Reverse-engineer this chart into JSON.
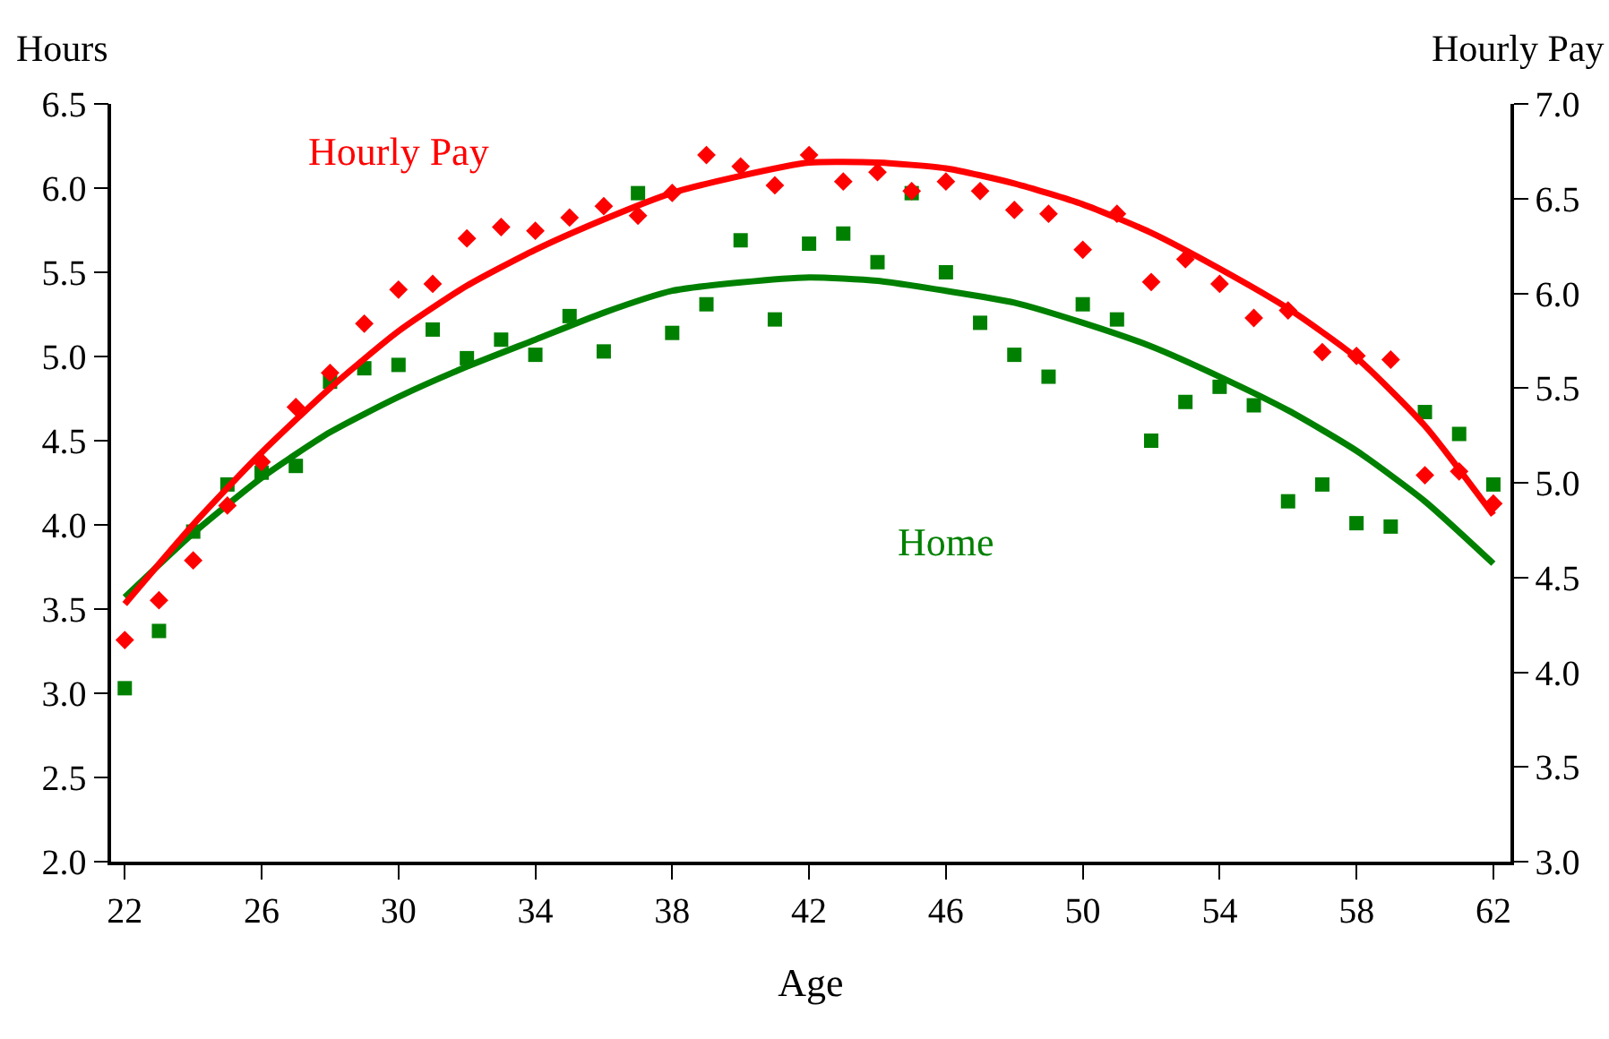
{
  "chart_data": {
    "type": "scatter",
    "xlabel": "Age",
    "ylabel": "Hours",
    "y2label": "Hourly Pay",
    "xlim": [
      21.6,
      62.5
    ],
    "xticks": [
      22,
      26,
      30,
      34,
      38,
      42,
      46,
      50,
      54,
      58,
      62
    ],
    "ylim": [
      2.0,
      6.5
    ],
    "yticks": [
      {
        "value": 2,
        "label": "2.0"
      },
      2.5,
      {
        "value": 3,
        "label": "3.0"
      },
      3.5,
      {
        "value": 4,
        "label": "4.0"
      },
      4.5,
      {
        "value": 5,
        "label": "5.0"
      },
      5.5,
      {
        "value": 6,
        "label": "6.0"
      },
      6.5
    ],
    "y2lim": [
      3.0,
      7.0
    ],
    "y2ticks": [
      {
        "value": 3,
        "label": "3.0"
      },
      3.5,
      {
        "value": 4,
        "label": "4.0"
      },
      4.5,
      {
        "value": 5,
        "label": "5.0"
      },
      5.5,
      {
        "value": 6,
        "label": "6.0"
      },
      6.5,
      {
        "value": 7,
        "label": "7.0"
      }
    ],
    "grid": false,
    "legend": false,
    "series": [
      {
        "axis": "y2",
        "marker": "diamond",
        "color": "#ff0000",
        "x": [
          22,
          23,
          24,
          25,
          26,
          27,
          28,
          29,
          30,
          31,
          32,
          33,
          34,
          35,
          36,
          37,
          38,
          39,
          40,
          41,
          42,
          43,
          44,
          45,
          46,
          47,
          48,
          49,
          50,
          51,
          52,
          53,
          54,
          55,
          56,
          57,
          58,
          59,
          60,
          61,
          62
        ],
        "values": [
          4.17,
          4.38,
          4.59,
          4.88,
          5.11,
          5.4,
          5.58,
          5.84,
          6.02,
          6.05,
          6.29,
          6.35,
          6.33,
          6.4,
          6.46,
          6.41,
          6.53,
          6.73,
          6.67,
          6.57,
          6.73,
          6.59,
          6.64,
          6.54,
          6.59,
          6.54,
          6.44,
          6.42,
          6.23,
          6.42,
          6.06,
          6.18,
          6.05,
          5.87,
          5.91,
          5.69,
          5.67,
          5.65,
          5.04,
          5.06,
          4.89
        ]
      },
      {
        "marker": "square",
        "color": "#008000",
        "x": [
          22,
          23,
          24,
          25,
          26,
          27,
          28,
          29,
          30,
          31,
          32,
          33,
          34,
          35,
          36,
          37,
          38,
          39,
          40,
          41,
          42,
          43,
          44,
          45,
          46,
          47,
          48,
          49,
          50,
          51,
          52,
          53,
          54,
          55,
          56,
          57,
          58,
          59,
          60,
          61,
          62
        ],
        "values": [
          3.03,
          3.37,
          3.96,
          4.24,
          4.31,
          4.35,
          4.85,
          4.93,
          4.95,
          5.16,
          4.99,
          5.1,
          5.01,
          5.24,
          5.03,
          5.97,
          5.14,
          5.31,
          5.69,
          5.22,
          5.67,
          5.73,
          5.56,
          5.97,
          5.5,
          5.2,
          5.01,
          4.88,
          5.31,
          5.22,
          4.5,
          4.73,
          4.82,
          4.71,
          4.14,
          4.24,
          4.01,
          3.99,
          4.67,
          4.54,
          4.24
        ]
      },
      {
        "type": "line",
        "name": "Hourly Pay",
        "axis": "y2",
        "color": "#ff0000",
        "marker": "none",
        "line_style": "solid",
        "x": [
          22,
          24,
          26,
          28,
          30,
          32,
          34,
          36,
          38,
          40,
          42,
          44,
          46,
          48,
          50,
          52,
          54,
          56,
          58,
          60,
          62
        ],
        "values": [
          4.36,
          4.78,
          5.16,
          5.5,
          5.8,
          6.04,
          6.23,
          6.39,
          6.53,
          6.62,
          6.69,
          6.69,
          6.66,
          6.58,
          6.47,
          6.32,
          6.13,
          5.92,
          5.66,
          5.3,
          4.83
        ]
      },
      {
        "type": "line",
        "name": "Home",
        "color": "#008000",
        "marker": "none",
        "line_style": "solid",
        "x": [
          22,
          24,
          26,
          28,
          30,
          32,
          34,
          36,
          38,
          40,
          42,
          44,
          46,
          48,
          50,
          52,
          54,
          56,
          58,
          60,
          62
        ],
        "values": [
          3.57,
          3.95,
          4.28,
          4.55,
          4.76,
          4.94,
          5.1,
          5.26,
          5.39,
          5.44,
          5.47,
          5.45,
          5.39,
          5.32,
          5.2,
          5.06,
          4.88,
          4.68,
          4.44,
          4.14,
          3.77
        ]
      }
    ]
  }
}
